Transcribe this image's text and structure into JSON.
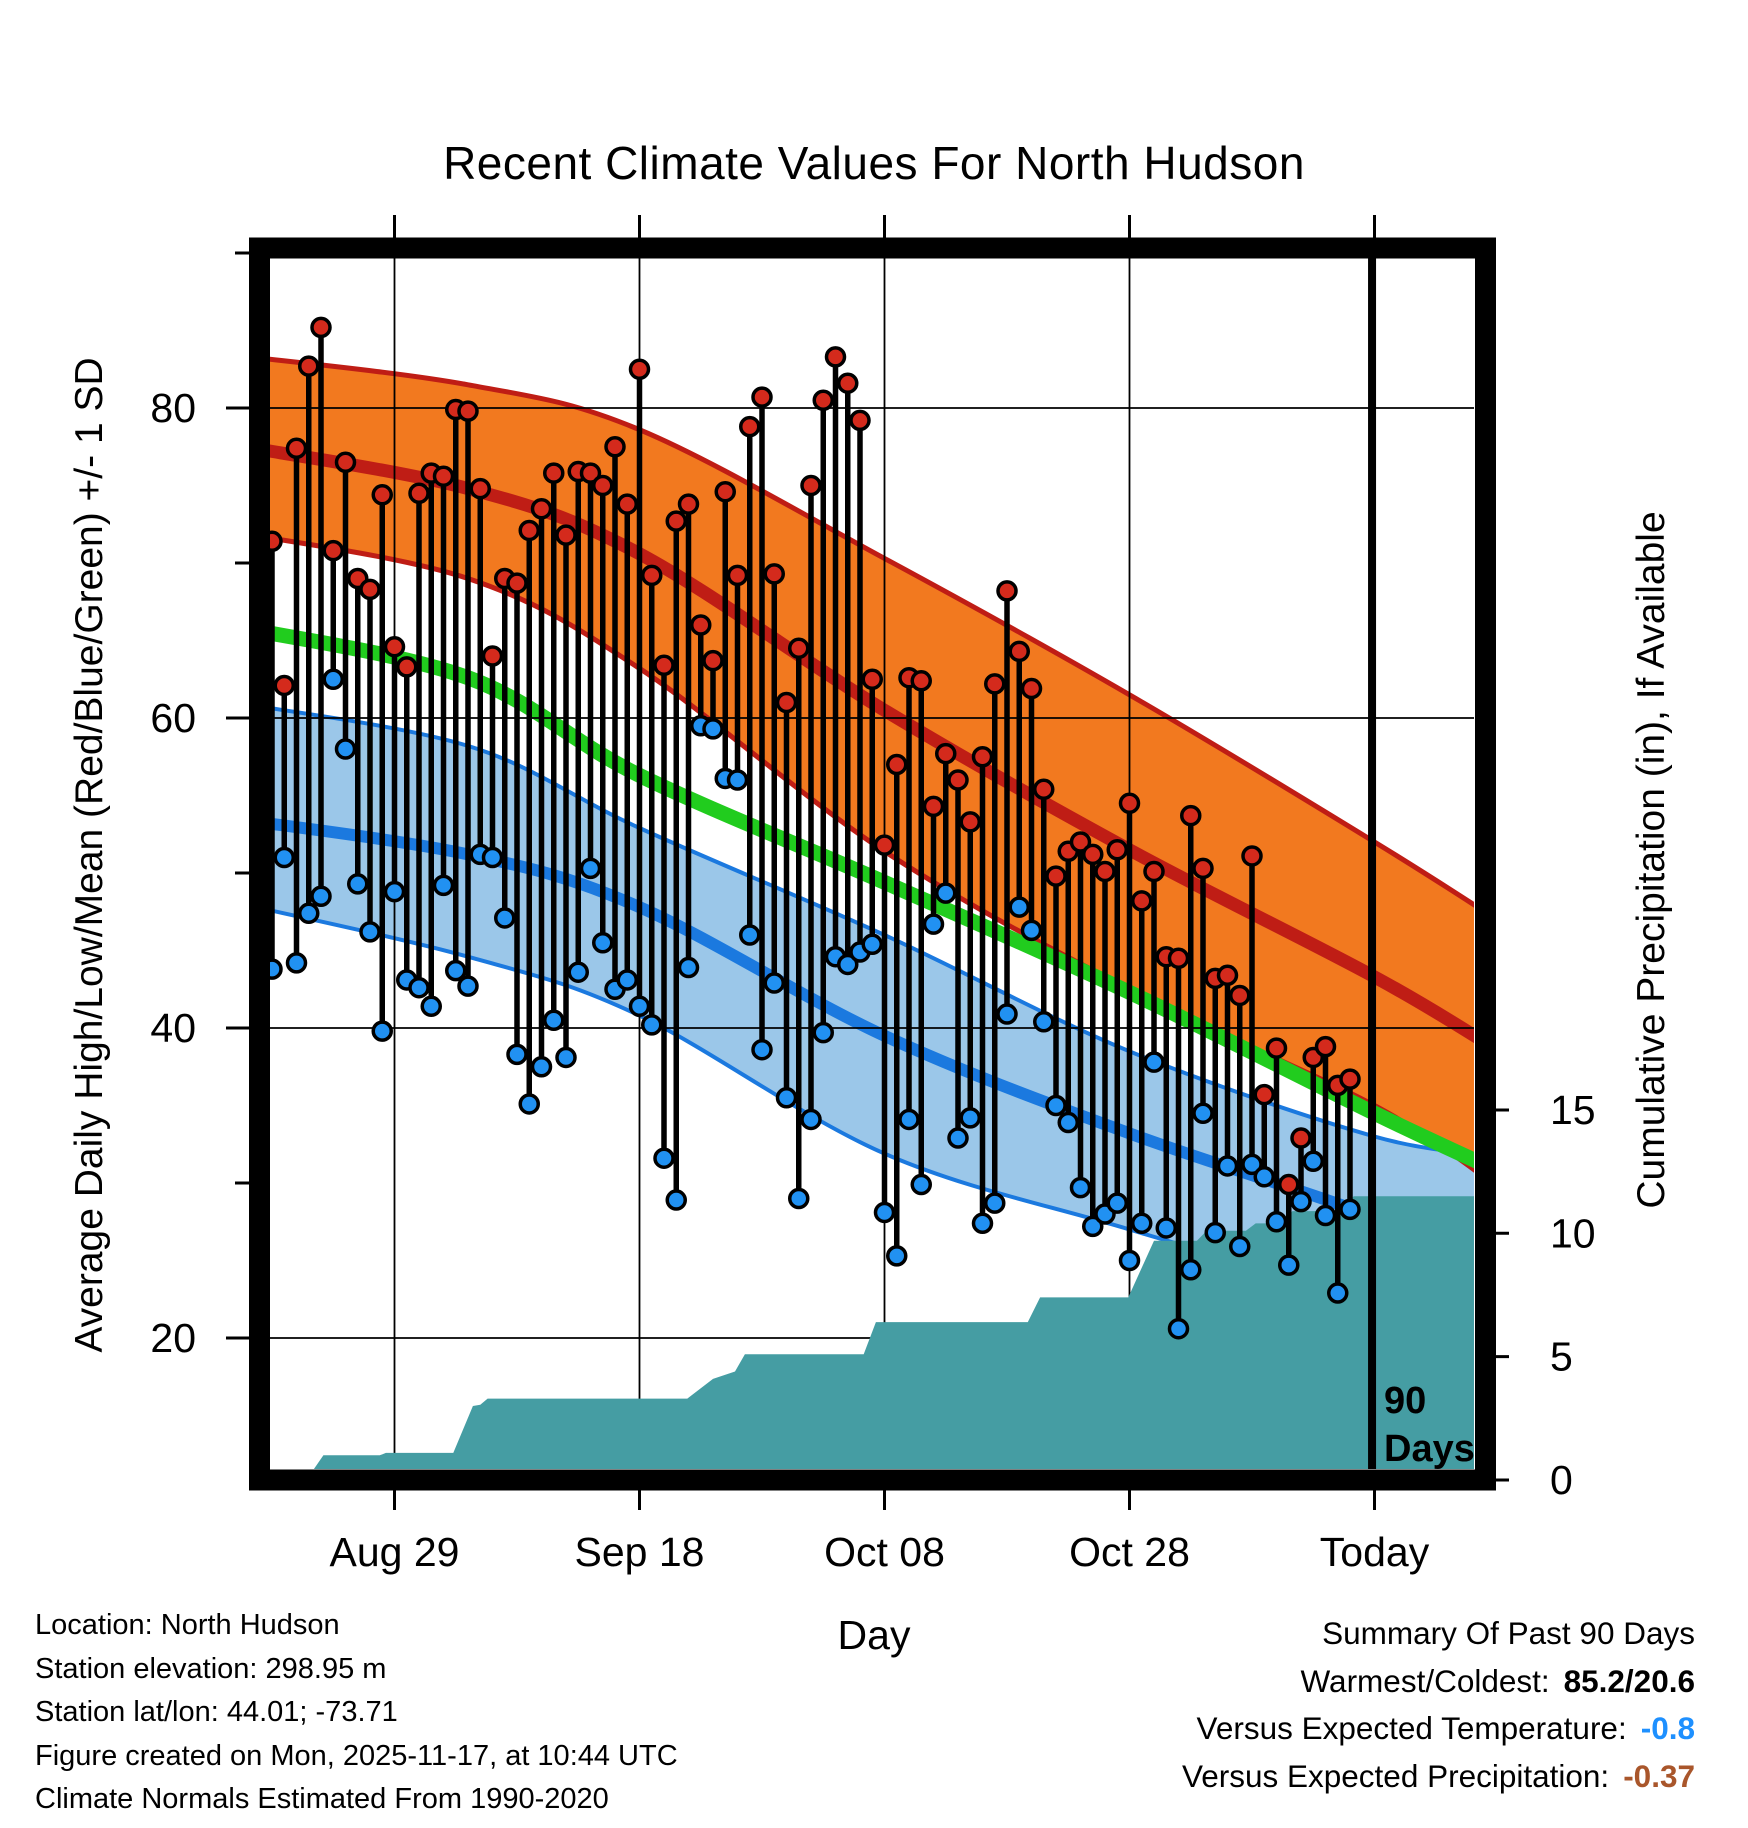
{
  "title": "Recent Climate Values For North Hudson",
  "footer": {
    "location": "Location: North Hudson",
    "elevation": "Station elevation: 298.95 m",
    "latlon": "Station lat/lon: 44.01; -73.71",
    "created": "Figure created on Mon, 2025-11-17, at 10:44 UTC",
    "normals_note": "Climate Normals Estimated From 1990-2020"
  },
  "summary": {
    "heading": "Summary Of Past 90 Days",
    "warmest_coldest_label": "Warmest/Coldest:",
    "warmest_coldest_value": "85.2/20.6",
    "vs_temp_label": "Versus Expected Temperature:",
    "vs_temp_value": "-0.8",
    "vs_precip_label": "Versus Expected Precipitation:",
    "vs_precip_value": "-0.37"
  },
  "colors": {
    "high_band": "#F2791F",
    "high_line": "#BF1D15",
    "mean_line": "#21CC1E",
    "low_band": "#9BC7E9",
    "low_line": "#1B79DF",
    "high_dot": "#D42A1C",
    "low_dot": "#2191F2",
    "precip_fill": "#459DA3",
    "grid": "#000000",
    "vs_temp_color": "#1E90FF",
    "vs_precip_color": "#A9562B"
  },
  "chart_data": {
    "type": "composite-climate",
    "title": "Recent Climate Values For North Hudson",
    "xlabel": "Day",
    "ylabel_left": "Average Daily High/Low/Mean (Red/Blue/Green) +/- 1 SD",
    "ylabel_right": "Cumulative Precipitation (in), If Available",
    "x_ticks": [
      {
        "day": 11,
        "label": "Aug 29"
      },
      {
        "day": 31,
        "label": "Sep 18"
      },
      {
        "day": 51,
        "label": "Oct 08"
      },
      {
        "day": 71,
        "label": "Oct 28"
      },
      {
        "day": 91,
        "label": "Today"
      }
    ],
    "yticks_left": [
      20,
      40,
      60,
      80
    ],
    "yticks_left_minor": [
      30,
      50,
      70,
      90
    ],
    "ylim_left": [
      11,
      91
    ],
    "yticks_right": [
      0,
      5,
      10,
      15
    ],
    "ylim_right": [
      0,
      50
    ],
    "annotation": {
      "day": 90.8,
      "labels": [
        "90",
        "Days"
      ]
    },
    "daily": {
      "dates": [
        "Aug 19",
        "Aug 20",
        "Aug 21",
        "Aug 22",
        "Aug 23",
        "Aug 24",
        "Aug 25",
        "Aug 26",
        "Aug 27",
        "Aug 28",
        "Aug 29",
        "Aug 30",
        "Aug 31",
        "Sep 1",
        "Sep 2",
        "Sep 3",
        "Sep 4",
        "Sep 5",
        "Sep 6",
        "Sep 7",
        "Sep 8",
        "Sep 9",
        "Sep 10",
        "Sep 11",
        "Sep 12",
        "Sep 13",
        "Sep 14",
        "Sep 15",
        "Sep 16",
        "Sep 17",
        "Sep 18",
        "Sep 19",
        "Sep 20",
        "Sep 21",
        "Sep 22",
        "Sep 23",
        "Sep 24",
        "Sep 25",
        "Sep 26",
        "Sep 27",
        "Sep 28",
        "Sep 29",
        "Sep 30",
        "Oct 1",
        "Oct 2",
        "Oct 3",
        "Oct 4",
        "Oct 5",
        "Oct 6",
        "Oct 7",
        "Oct 8",
        "Oct 9",
        "Oct 10",
        "Oct 11",
        "Oct 12",
        "Oct 13",
        "Oct 14",
        "Oct 15",
        "Oct 16",
        "Oct 17",
        "Oct 18",
        "Oct 19",
        "Oct 20",
        "Oct 21",
        "Oct 22",
        "Oct 23",
        "Oct 24",
        "Oct 25",
        "Oct 26",
        "Oct 27",
        "Oct 28",
        "Oct 29",
        "Oct 30",
        "Oct 31",
        "Nov 1",
        "Nov 2",
        "Nov 3",
        "Nov 4",
        "Nov 5",
        "Nov 6",
        "Nov 7",
        "Nov 8",
        "Nov 9",
        "Nov 10",
        "Nov 11",
        "Nov 12",
        "Nov 13",
        "Nov 14",
        "Nov 15"
      ],
      "high": [
        71.4,
        62.1,
        77.4,
        82.7,
        85.2,
        70.8,
        76.5,
        69.0,
        68.3,
        74.4,
        64.6,
        63.3,
        74.5,
        75.8,
        75.6,
        79.9,
        79.8,
        74.8,
        64.0,
        69.0,
        68.7,
        72.1,
        73.5,
        75.8,
        71.8,
        75.9,
        75.8,
        75.0,
        77.5,
        73.8,
        82.5,
        69.2,
        63.4,
        72.7,
        73.8,
        66.0,
        63.7,
        74.6,
        69.2,
        78.8,
        80.7,
        69.3,
        61.0,
        64.5,
        75.0,
        80.5,
        83.3,
        81.6,
        79.2,
        62.5,
        51.8,
        57.0,
        62.6,
        62.4,
        54.3,
        57.7,
        56.0,
        53.3,
        57.5,
        62.2,
        68.2,
        64.3,
        61.9,
        55.4,
        49.8,
        51.4,
        52.0,
        51.2,
        50.1,
        51.5,
        54.5,
        48.2,
        50.1,
        44.6,
        44.5,
        53.7,
        50.3,
        43.2,
        43.4,
        42.1,
        51.1,
        35.7,
        38.7,
        29.9,
        32.9,
        38.1,
        38.8,
        36.3,
        36.7
      ],
      "low": [
        43.8,
        51.0,
        44.2,
        47.4,
        48.5,
        62.5,
        58.0,
        49.3,
        46.2,
        39.8,
        48.8,
        43.1,
        42.6,
        41.4,
        49.2,
        43.7,
        42.7,
        51.2,
        51.0,
        47.1,
        38.3,
        35.1,
        37.5,
        40.5,
        38.1,
        43.6,
        50.3,
        45.5,
        42.5,
        43.1,
        41.4,
        40.2,
        31.6,
        28.9,
        43.9,
        59.5,
        59.3,
        56.1,
        56.0,
        46.0,
        38.6,
        42.9,
        35.5,
        29.0,
        34.1,
        39.7,
        44.6,
        44.1,
        44.9,
        45.4,
        28.1,
        25.3,
        34.1,
        29.9,
        46.7,
        48.7,
        32.9,
        34.2,
        27.4,
        28.7,
        40.9,
        47.8,
        46.3,
        40.4,
        35.0,
        33.9,
        29.7,
        27.2,
        28.0,
        28.7,
        25.0,
        27.4,
        37.8,
        27.1,
        20.6,
        24.4,
        34.5,
        26.8,
        31.1,
        25.9,
        31.2,
        30.4,
        27.5,
        24.7,
        28.8,
        31.4,
        27.9,
        22.9,
        28.3
      ]
    },
    "normals": {
      "days": [
        -2,
        17,
        31,
        51,
        71,
        91,
        101
      ],
      "high_plus": [
        83.4,
        81.5,
        78.6,
        70.3,
        61.5,
        52.0,
        47.0
      ],
      "high_mean": [
        77.6,
        74.8,
        70.6,
        60.5,
        51.5,
        43.3,
        38.6
      ],
      "high_minus": [
        72.0,
        69.0,
        63.2,
        51.4,
        42.5,
        35.0,
        29.8
      ],
      "mean": [
        65.9,
        62.6,
        56.3,
        49.4,
        42.3,
        34.5,
        30.8
      ],
      "low_plus": [
        61.0,
        58.2,
        52.9,
        46.0,
        38.5,
        33.0,
        31.8
      ],
      "low_mean": [
        53.5,
        51.2,
        47.8,
        39.5,
        33.2,
        27.8,
        24.0
      ],
      "low_minus": [
        48.1,
        44.6,
        40.8,
        31.9,
        27.0,
        22.3,
        19.0
      ]
    },
    "precip_cumulative": {
      "units": "in",
      "points": [
        [
          3.8,
          0
        ],
        [
          5.2,
          1.0
        ],
        [
          9.8,
          1.0
        ],
        [
          10.3,
          1.1
        ],
        [
          15.8,
          1.1
        ],
        [
          17.4,
          3.0
        ],
        [
          18.0,
          3.05
        ],
        [
          18.6,
          3.3
        ],
        [
          34.9,
          3.3
        ],
        [
          37.0,
          4.1
        ],
        [
          38.8,
          4.4
        ],
        [
          39.6,
          5.1
        ],
        [
          49.3,
          5.1
        ],
        [
          50.3,
          6.4
        ],
        [
          62.7,
          6.4
        ],
        [
          63.7,
          7.4
        ],
        [
          70.9,
          7.4
        ],
        [
          73.0,
          9.7
        ],
        [
          76.5,
          9.7
        ],
        [
          77.3,
          10.1
        ],
        [
          80.5,
          10.1
        ],
        [
          81.3,
          10.4
        ],
        [
          83.5,
          10.4
        ],
        [
          84.3,
          10.9
        ],
        [
          88.2,
          10.9
        ],
        [
          89.3,
          11.5
        ],
        [
          101,
          11.5
        ]
      ],
      "total": 11.5
    }
  }
}
